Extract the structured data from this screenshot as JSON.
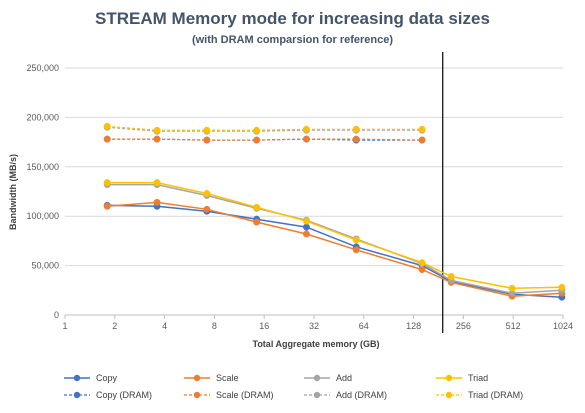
{
  "chart_data": {
    "type": "line",
    "title": "STREAM Memory mode for increasing data sizes",
    "subtitle": "(with DRAM comparsion for reference)",
    "xlabel": "Total Aggregate memory (GB)",
    "ylabel": "Bandwidth (MB/s)",
    "x_scale": "log2",
    "xlim": [
      1,
      1024
    ],
    "ylim": [
      0,
      250000
    ],
    "x_ticks": [
      1,
      2,
      4,
      8,
      16,
      32,
      64,
      128,
      256,
      512,
      1024
    ],
    "y_ticks": [
      0,
      50000,
      100000,
      150000,
      200000,
      250000
    ],
    "y_tick_labels": [
      "0",
      "50,000",
      "100,000",
      "150,000",
      "200,000",
      "250,000"
    ],
    "grid": true,
    "legend_position": "bottom",
    "reference_line_x": 192,
    "series": [
      {
        "name": "Copy",
        "color": "#4472c4",
        "dashed": false,
        "x": [
          1.8,
          3.6,
          7.2,
          14.4,
          28.8,
          57.6,
          144,
          216,
          504,
          1008
        ],
        "y": [
          111000,
          110000,
          105000,
          97000,
          89000,
          69000,
          50000,
          34000,
          21000,
          18000
        ]
      },
      {
        "name": "Scale",
        "color": "#ed7d31",
        "dashed": false,
        "x": [
          1.8,
          3.6,
          7.2,
          14.4,
          28.8,
          57.6,
          144,
          216,
          504,
          1008
        ],
        "y": [
          110000,
          114000,
          107000,
          94000,
          82000,
          66000,
          46000,
          33000,
          19000,
          22000
        ]
      },
      {
        "name": "Add",
        "color": "#a5a5a5",
        "dashed": false,
        "x": [
          1.8,
          3.6,
          7.2,
          14.4,
          28.8,
          57.6,
          144,
          216,
          504,
          1008
        ],
        "y": [
          132000,
          132000,
          121000,
          108000,
          96000,
          77000,
          52000,
          35000,
          22000,
          25000
        ]
      },
      {
        "name": "Triad",
        "color": "#ffc000",
        "dashed": false,
        "x": [
          1.8,
          3.6,
          7.2,
          14.4,
          28.8,
          57.6,
          144,
          216,
          504,
          1008
        ],
        "y": [
          134000,
          134000,
          123000,
          109000,
          95000,
          76000,
          53000,
          39000,
          27000,
          28000
        ]
      },
      {
        "name": "Copy (DRAM)",
        "color": "#4472c4",
        "dashed": true,
        "x": [
          1.8,
          3.6,
          7.2,
          14.4,
          28.8,
          57.6,
          144
        ],
        "y": [
          178000,
          178000,
          177000,
          177000,
          178000,
          177000,
          177000
        ]
      },
      {
        "name": "Scale (DRAM)",
        "color": "#ed7d31",
        "dashed": true,
        "x": [
          1.8,
          3.6,
          7.2,
          14.4,
          28.8,
          57.6,
          144
        ],
        "y": [
          178000,
          178000,
          177000,
          177000,
          178000,
          178000,
          177000
        ]
      },
      {
        "name": "Add (DRAM)",
        "color": "#a5a5a5",
        "dashed": true,
        "x": [
          1.8,
          3.6,
          7.2,
          14.4,
          28.8,
          57.6,
          144
        ],
        "y": [
          190000,
          186000,
          186000,
          186000,
          187000,
          187000,
          187000
        ]
      },
      {
        "name": "Triad (DRAM)",
        "color": "#ffc000",
        "dashed": true,
        "x": [
          1.8,
          3.6,
          7.2,
          14.4,
          28.8,
          57.6,
          144
        ],
        "y": [
          191000,
          187000,
          187000,
          187000,
          188000,
          188000,
          188000
        ]
      }
    ]
  }
}
